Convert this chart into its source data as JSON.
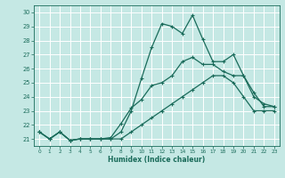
{
  "xlabel": "Humidex (Indice chaleur)",
  "xlim": [
    -0.5,
    23.5
  ],
  "ylim": [
    20.5,
    30.5
  ],
  "xticks": [
    0,
    1,
    2,
    3,
    4,
    5,
    6,
    7,
    8,
    9,
    10,
    11,
    12,
    13,
    14,
    15,
    16,
    17,
    18,
    19,
    20,
    21,
    22,
    23
  ],
  "yticks": [
    21,
    22,
    23,
    24,
    25,
    26,
    27,
    28,
    29,
    30
  ],
  "background_color": "#c5e8e4",
  "grid_color": "#ffffff",
  "line_color": "#1a6b5a",
  "line1_y": [
    21.5,
    21.0,
    21.5,
    20.9,
    21.0,
    21.0,
    21.0,
    21.0,
    21.5,
    23.0,
    25.3,
    27.5,
    29.2,
    29.0,
    28.5,
    29.8,
    28.1,
    26.5,
    26.5,
    27.0,
    25.5,
    24.0,
    23.5,
    23.3
  ],
  "line2_y": [
    21.5,
    21.0,
    21.5,
    20.9,
    21.0,
    21.0,
    21.0,
    21.1,
    22.1,
    23.2,
    23.8,
    24.8,
    25.0,
    25.5,
    26.5,
    26.8,
    26.3,
    26.3,
    25.8,
    25.5,
    25.5,
    24.3,
    23.3,
    23.3
  ],
  "line3_y": [
    21.5,
    21.0,
    21.5,
    20.9,
    21.0,
    21.0,
    21.0,
    21.0,
    21.0,
    21.5,
    22.0,
    22.5,
    23.0,
    23.5,
    24.0,
    24.5,
    25.0,
    25.5,
    25.5,
    25.0,
    24.0,
    23.0,
    23.0,
    23.0
  ]
}
